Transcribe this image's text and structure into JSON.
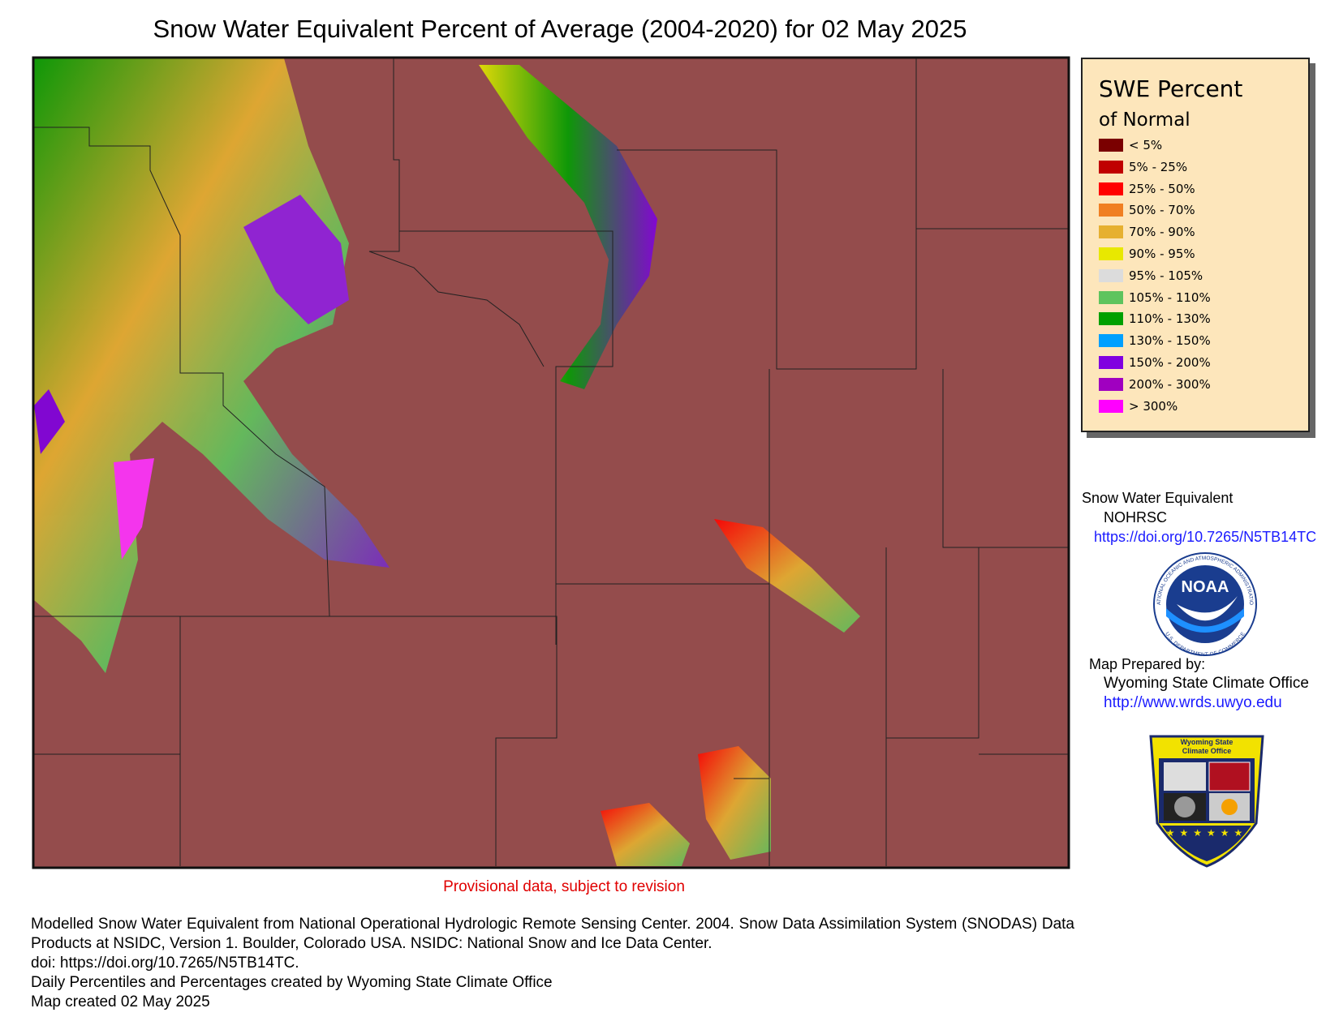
{
  "title": "Snow Water Equivalent Percent of Average (2004-2020) for 02 May 2025",
  "legend": {
    "title": "SWE Percent",
    "subtitle": "of Normal",
    "items": [
      {
        "label": "< 5%",
        "color": "#7a0000"
      },
      {
        "label": "5% - 25%",
        "color": "#c00000"
      },
      {
        "label": "25% - 50%",
        "color": "#ff0000"
      },
      {
        "label": "50% - 70%",
        "color": "#f07f22"
      },
      {
        "label": "70% - 90%",
        "color": "#e6b030"
      },
      {
        "label": "90% - 95%",
        "color": "#e8e800"
      },
      {
        "label": "95% - 105%",
        "color": "#dcdcdc"
      },
      {
        "label": "105% - 110%",
        "color": "#5ec45e"
      },
      {
        "label": "110% - 130%",
        "color": "#00a000"
      },
      {
        "label": "130% - 150%",
        "color": "#00a0ff"
      },
      {
        "label": "150% - 200%",
        "color": "#8000e0"
      },
      {
        "label": "200% - 300%",
        "color": "#a000c0"
      },
      {
        "label": "> 300%",
        "color": "#ff00ff"
      }
    ]
  },
  "credits": {
    "source_title": "Snow Water Equivalent",
    "source_org": "NOHRSC",
    "source_link": "https://doi.org/10.7265/N5TB14TC",
    "prepared_label": "Map Prepared by:",
    "prepared_org": "Wyoming State Climate Office",
    "prepared_link": "http://www.wrds.uwyo.edu"
  },
  "logos": {
    "noaa": "NOAA",
    "noaa_ring_top": "NATIONAL OCEANIC AND ATMOSPHERIC ADMINISTRATION",
    "noaa_ring_bottom": "U.S. DEPARTMENT OF COMMERCE",
    "wsco_top": "Wyoming State",
    "wsco_bottom": "Climate Office"
  },
  "notice": "Provisional data, subject to revision",
  "footer": [
    "Modelled Snow Water Equivalent from National Operational Hydrologic Remote Sensing Center. 2004. Snow Data Assimilation System (SNODAS) Data Products at NSIDC, Version 1. Boulder, Colorado USA. NSIDC: National Snow and Ice Data Center.",
    "doi: https://doi.org/10.7265/N5TB14TC.",
    "Daily Percentiles and Percentages created by Wyoming State Climate Office",
    "Map created 02 May 2025"
  ]
}
